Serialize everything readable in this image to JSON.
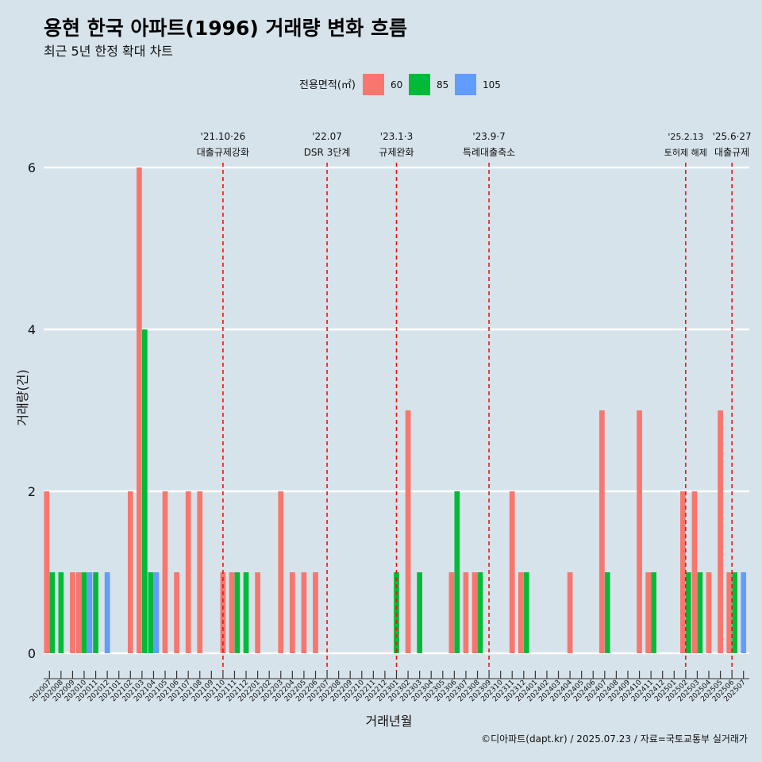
{
  "header": {
    "title": "용현 한국 아파트(1996) 거래량 변화 흐름",
    "subtitle": "최근 5년 한정 확대 차트"
  },
  "legend": {
    "title": "전용면적(㎡)",
    "items": [
      {
        "label": "60",
        "color": "#f8766d"
      },
      {
        "label": "85",
        "color": "#00ba38"
      },
      {
        "label": "105",
        "color": "#619cff"
      }
    ]
  },
  "caption": "©디아파트(dapt.kr) / 2025.07.23 / 자료=국토교통부 실거래가",
  "chart_data": {
    "type": "bar",
    "xlabel": "거래년월",
    "ylabel": "거래량(건)",
    "ylim": [
      0,
      6
    ],
    "yticks": [
      0,
      2,
      4,
      6
    ],
    "grid": true,
    "legend_position": "top",
    "categories": [
      "202007",
      "202008",
      "202009",
      "202010",
      "202011",
      "202012",
      "202101",
      "202102",
      "202103",
      "202104",
      "202105",
      "202106",
      "202107",
      "202108",
      "202109",
      "202110",
      "202111",
      "202112",
      "202201",
      "202202",
      "202203",
      "202204",
      "202205",
      "202206",
      "202207",
      "202208",
      "202209",
      "202210",
      "202211",
      "202212",
      "202301",
      "202302",
      "202303",
      "202304",
      "202305",
      "202306",
      "202307",
      "202308",
      "202309",
      "202310",
      "202311",
      "202312",
      "202401",
      "202402",
      "202403",
      "202404",
      "202405",
      "202406",
      "202407",
      "202408",
      "202409",
      "202410",
      "202411",
      "202412",
      "202501",
      "202502",
      "202503",
      "202504",
      "202505",
      "202506",
      "202507"
    ],
    "series": [
      {
        "name": "60",
        "color": "#f8766d",
        "values": [
          2,
          0,
          1,
          1,
          0,
          0,
          0,
          2,
          6,
          0,
          2,
          1,
          2,
          2,
          0,
          1,
          1,
          0,
          1,
          0,
          2,
          1,
          1,
          1,
          0,
          0,
          0,
          0,
          0,
          0,
          0,
          3,
          0,
          0,
          0,
          1,
          1,
          1,
          0,
          0,
          2,
          1,
          0,
          0,
          0,
          1,
          0,
          0,
          3,
          0,
          0,
          3,
          1,
          0,
          0,
          2,
          2,
          1,
          3,
          1,
          0
        ]
      },
      {
        "name": "85",
        "color": "#00ba38",
        "values": [
          1,
          1,
          0,
          1,
          1,
          0,
          0,
          0,
          4,
          1,
          0,
          0,
          0,
          0,
          0,
          0,
          1,
          1,
          0,
          0,
          0,
          0,
          0,
          0,
          0,
          0,
          0,
          0,
          0,
          0,
          1,
          0,
          1,
          0,
          0,
          2,
          0,
          1,
          0,
          0,
          0,
          1,
          0,
          0,
          0,
          0,
          0,
          0,
          1,
          0,
          0,
          0,
          1,
          0,
          0,
          1,
          1,
          0,
          0,
          1,
          0
        ]
      },
      {
        "name": "105",
        "color": "#619cff",
        "values": [
          0,
          0,
          0,
          1,
          0,
          1,
          0,
          0,
          0,
          1,
          0,
          0,
          0,
          0,
          0,
          0,
          0,
          0,
          0,
          0,
          0,
          0,
          0,
          0,
          0,
          0,
          0,
          0,
          0,
          0,
          0,
          0,
          0,
          0,
          0,
          0,
          0,
          0,
          0,
          0,
          0,
          0,
          0,
          0,
          0,
          0,
          0,
          0,
          0,
          0,
          0,
          0,
          0,
          0,
          0,
          0,
          0,
          0,
          0,
          0,
          1
        ]
      }
    ],
    "annotations": [
      {
        "date": "'21.10·26",
        "label": "대출규제강화",
        "month": "202110"
      },
      {
        "date": "'22.07",
        "label": "DSR 3단계",
        "month": "202207"
      },
      {
        "date": "'23.1·3",
        "label": "규제완화",
        "month": "202301"
      },
      {
        "date": "'23.9·7",
        "label": "특례대출축소",
        "month": "202309"
      },
      {
        "date": "'25.2.13",
        "label": "토허제 해제",
        "month": "202502"
      },
      {
        "date": "'25.6·27",
        "label": "대출규제",
        "month": "202506"
      }
    ]
  }
}
